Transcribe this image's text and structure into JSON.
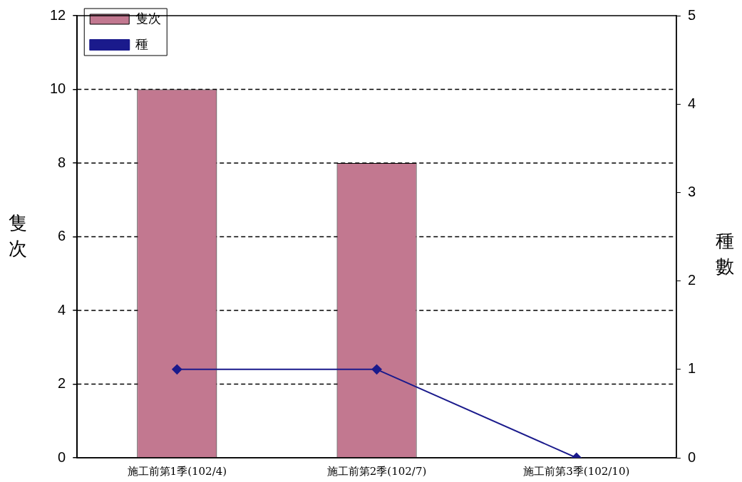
{
  "chart_data": {
    "type": "bar",
    "categories": [
      "施工前第1季(102/4)",
      "施工前第2季(102/7)",
      "施工前第3季(102/10)"
    ],
    "series": [
      {
        "name": "隻次",
        "color": "#c27890",
        "values": [
          10,
          8,
          0
        ]
      },
      {
        "name": "種",
        "type": "line",
        "axis": "y2",
        "color": "#1a1a8c",
        "values": [
          1,
          1,
          0
        ]
      }
    ],
    "ylabel": "隻次",
    "y2label": "種數",
    "ylim": [
      0,
      12
    ],
    "yticks": [
      0,
      2,
      4,
      6,
      8,
      10,
      12
    ],
    "y2lim": [
      0,
      5
    ],
    "y2ticks": [
      0,
      1,
      2,
      3,
      4,
      5
    ],
    "grid": "y",
    "legend": "top left",
    "marker": "diamond",
    "line_style": "solid"
  }
}
